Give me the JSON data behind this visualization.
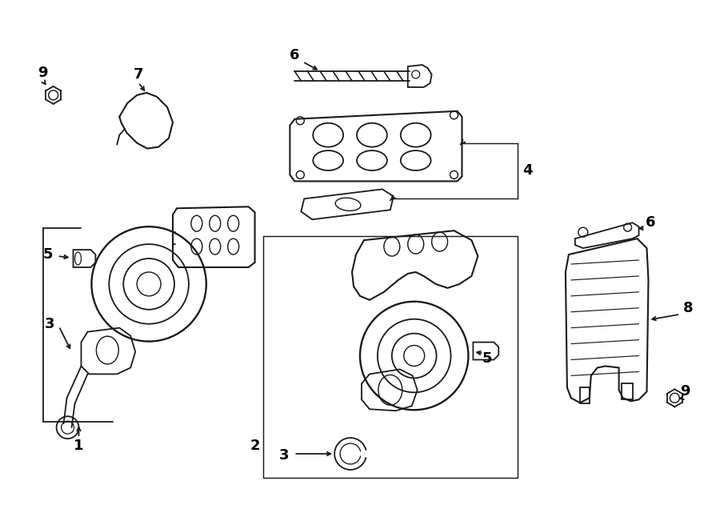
{
  "bg_color": "#ffffff",
  "line_color": "#1a1a1a",
  "line_width": 1.3,
  "fig_width": 9.0,
  "fig_height": 6.61,
  "dpi": 100
}
